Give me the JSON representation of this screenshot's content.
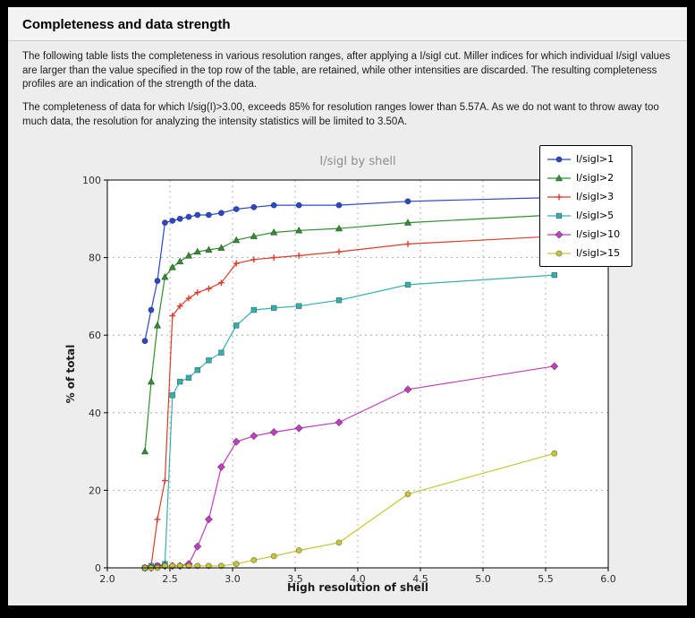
{
  "page": {
    "title": "Completeness and data strength",
    "paragraphs": [
      "The following table lists the completeness in various resolution ranges, after applying a I/sigI cut. Miller indices for which individual I/sigI values are larger than the value specified in the top row of the table, are retained, while other intensities are discarded. The resulting completeness profiles are an indication of the strength of the data.",
      "The completeness of data for which I/sig(I)>3.00, exceeds  85% for resolution ranges lower than 5.57A. As we do not want to throw away too much data, the resolution for analyzing the intensity statistics will be limited to 3.50A."
    ]
  },
  "chart_data": {
    "type": "line",
    "title": "I/sigI by shell",
    "xlabel": "High resolution of shell",
    "ylabel": "% of total",
    "xlim": [
      2.0,
      6.0
    ],
    "ylim": [
      0,
      100
    ],
    "xticks": [
      2.0,
      2.5,
      3.0,
      3.5,
      4.0,
      4.5,
      5.0,
      5.5,
      6.0
    ],
    "yticks": [
      0,
      20,
      40,
      60,
      80,
      100
    ],
    "grid": true,
    "legend_position": "top-right",
    "x": [
      2.3,
      2.35,
      2.4,
      2.46,
      2.52,
      2.58,
      2.65,
      2.72,
      2.81,
      2.91,
      3.03,
      3.17,
      3.33,
      3.53,
      3.85,
      4.4,
      5.57
    ],
    "series": [
      {
        "name": "I/sigI>1",
        "color": "#2a48c8",
        "marker": "circle",
        "values": [
          58.5,
          66.5,
          74.0,
          89.0,
          89.5,
          90.0,
          90.5,
          91.0,
          91.0,
          91.5,
          92.5,
          93.0,
          93.5,
          93.5,
          93.5,
          94.5,
          95.5
        ]
      },
      {
        "name": "I/sigI>2",
        "color": "#2f8f2f",
        "marker": "triangle",
        "values": [
          30.0,
          48.0,
          62.5,
          75.0,
          77.5,
          79.0,
          80.5,
          81.5,
          82.0,
          82.5,
          84.5,
          85.5,
          86.5,
          87.0,
          87.5,
          89.0,
          91.0
        ]
      },
      {
        "name": "I/sigI>3",
        "color": "#dd3a2a",
        "marker": "plus",
        "values": [
          0.0,
          0.5,
          12.5,
          22.5,
          65.0,
          67.5,
          69.5,
          71.0,
          72.0,
          73.5,
          78.5,
          79.5,
          80.0,
          80.5,
          81.5,
          83.5,
          85.5
        ]
      },
      {
        "name": "I/sigI>5",
        "color": "#35b0b0",
        "marker": "square",
        "values": [
          0.0,
          0.5,
          0.5,
          1.0,
          44.5,
          48.0,
          49.0,
          51.0,
          53.5,
          55.5,
          62.5,
          66.5,
          67.0,
          67.5,
          69.0,
          73.0,
          75.5
        ]
      },
      {
        "name": "I/sigI>10",
        "color": "#bf3fbf",
        "marker": "diamond",
        "values": [
          0.0,
          0.0,
          0.5,
          0.5,
          0.5,
          0.5,
          1.0,
          5.5,
          12.5,
          26.0,
          32.5,
          34.0,
          35.0,
          36.0,
          37.5,
          46.0,
          52.0
        ]
      },
      {
        "name": "I/sigI>15",
        "color": "#c6c63a",
        "marker": "circle",
        "values": [
          0.0,
          0.0,
          0.0,
          0.5,
          0.5,
          0.5,
          0.5,
          0.5,
          0.5,
          0.5,
          1.0,
          2.0,
          3.0,
          4.5,
          6.5,
          19.0,
          29.5
        ]
      }
    ]
  }
}
